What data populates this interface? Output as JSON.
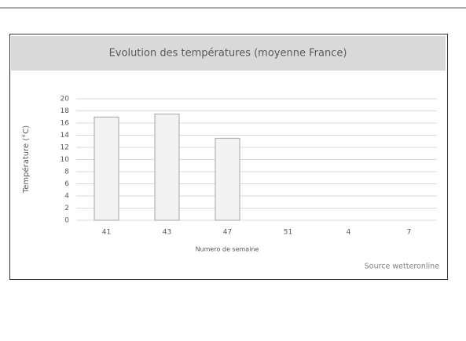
{
  "chart_data": {
    "type": "bar",
    "title": "Evolution des températures (moyenne France)",
    "x_label": "Numero de semaine",
    "y_label": "Température (°C)",
    "source": "Source wetteronline",
    "categories": [
      "41",
      "43",
      "47",
      "51",
      "4",
      "7"
    ],
    "values": [
      17,
      17.5,
      13.5,
      null,
      null,
      null
    ],
    "color": "#f2f2f2",
    "ylim": [
      0,
      20
    ],
    "yticks": [
      0,
      2,
      4,
      6,
      8,
      10,
      12,
      14,
      16,
      18,
      20
    ],
    "grid": true
  }
}
